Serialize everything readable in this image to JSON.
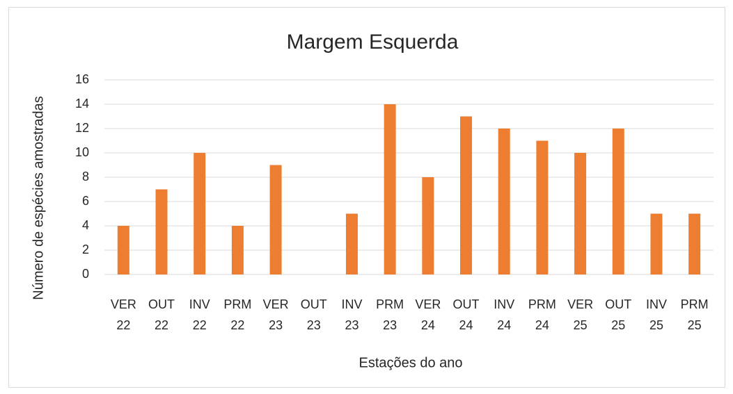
{
  "chart_data": {
    "type": "bar",
    "title": "Margem Esquerda",
    "x_label": "Estações do ano",
    "y_label": "Número de espécies amostradas",
    "categories": [
      "VER 22",
      "OUT 22",
      "INV 22",
      "PRM 22",
      "VER 23",
      "OUT 23",
      "INV 23",
      "PRM 23",
      "VER 24",
      "OUT 24",
      "INV 24",
      "PRM 24",
      "VER 25",
      "OUT 25",
      "INV 25",
      "PRM 25"
    ],
    "values": [
      4,
      7,
      10,
      4,
      9,
      0,
      5,
      14,
      8,
      13,
      12,
      11,
      10,
      12,
      5,
      5
    ],
    "color": "#ed7d31",
    "ylim": [
      0,
      16
    ],
    "yticks": [
      0,
      2,
      4,
      6,
      8,
      10,
      12,
      14,
      16
    ],
    "grid": true
  }
}
